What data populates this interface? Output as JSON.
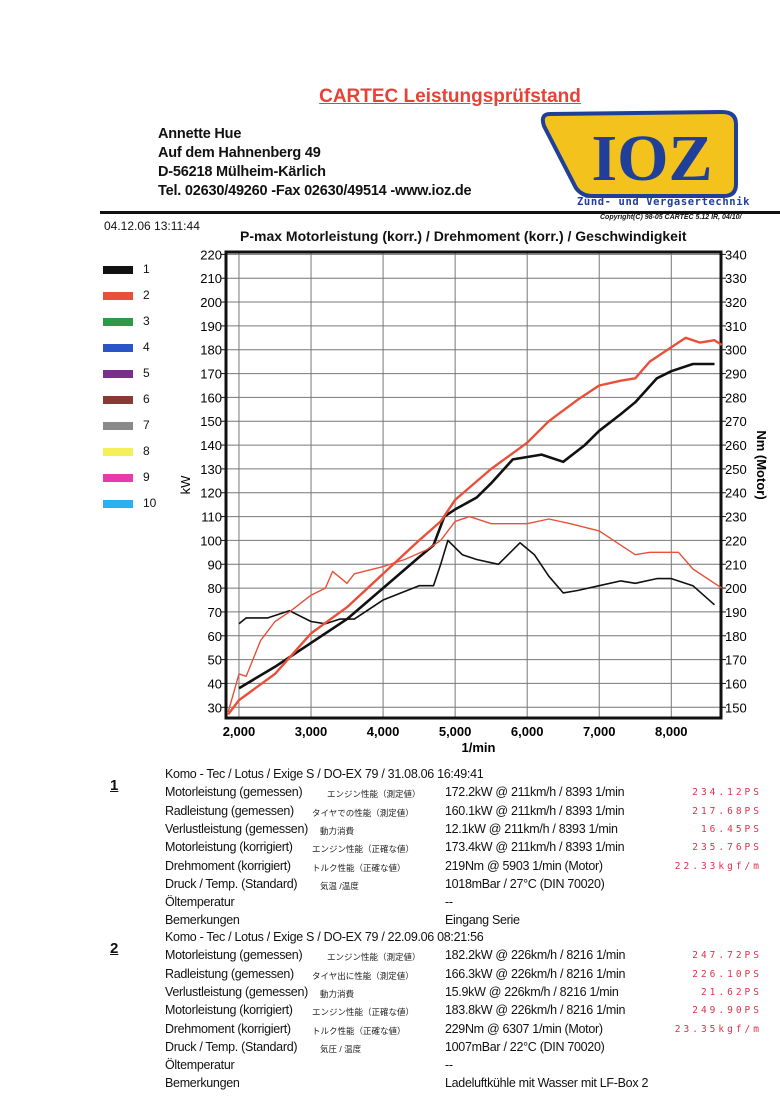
{
  "header": {
    "title": "CARTEC Leistungsprüfstand",
    "address": [
      "Annette Hue",
      "Auf dem Hahnenberg 49",
      "D-56218 Mülheim-Kärlich",
      "Tel. 02630/49260 -Fax 02630/49514 -www.ioz.de"
    ],
    "logo_text": "IOZ",
    "logo_subtitle": "Zünd- und Vergasertechnik",
    "copyright": "Copyright(C) 98-05 CARTEC 5.12 IR, 04/10/",
    "date": "04.12.06 13:11:44"
  },
  "legend": [
    {
      "label": "1",
      "color": "#111111"
    },
    {
      "label": "2",
      "color": "#e8503a"
    },
    {
      "label": "3",
      "color": "#2e9a48"
    },
    {
      "label": "4",
      "color": "#2a55c8"
    },
    {
      "label": "5",
      "color": "#7a2e8e"
    },
    {
      "label": "6",
      "color": "#8a3a34"
    },
    {
      "label": "7",
      "color": "#8a8a8a"
    },
    {
      "label": "8",
      "color": "#f5f05a"
    },
    {
      "label": "9",
      "color": "#e83aa8"
    },
    {
      "label": "10",
      "color": "#2ab0f0"
    }
  ],
  "chart_data": {
    "type": "line",
    "title": "P-max Motorleistung (korr.) / Drehmoment (korr.) / Geschwindigkeit",
    "xlabel": "1/min",
    "ylabel": "kW",
    "ylabel_right": "Nm (Motor)",
    "xlim": [
      1820,
      8690
    ],
    "ylim": [
      25.5,
      221
    ],
    "ylim_right": [
      145.5,
      341
    ],
    "xticks": [
      2000,
      3000,
      4000,
      5000,
      6000,
      7000,
      8000
    ],
    "xtick_labels": [
      "2,000",
      "3,000",
      "4,000",
      "5,000",
      "6,000",
      "7,000",
      "8,000"
    ],
    "yticks": [
      30,
      40,
      50,
      60,
      70,
      80,
      90,
      100,
      110,
      120,
      130,
      140,
      150,
      160,
      170,
      180,
      190,
      200,
      210,
      220
    ],
    "yticks_right": [
      150,
      160,
      170,
      180,
      190,
      200,
      210,
      220,
      230,
      240,
      250,
      260,
      270,
      280,
      290,
      300,
      310,
      320,
      330,
      340
    ],
    "grid": true,
    "series": [
      {
        "name": "1 Motorleistung",
        "axis": "left",
        "color": "#111111",
        "width": 2.6,
        "x": [
          2000,
          2500,
          3000,
          3500,
          4000,
          4500,
          4700,
          4850,
          5000,
          5300,
          5500,
          5800,
          6000,
          6200,
          6500,
          6800,
          7000,
          7300,
          7500,
          7800,
          8000,
          8300,
          8600
        ],
        "y": [
          38,
          47,
          57,
          67,
          80,
          93,
          98,
          110,
          113,
          118,
          124,
          134,
          135,
          136,
          133,
          140,
          146,
          153,
          158,
          168,
          171,
          174,
          174
        ]
      },
      {
        "name": "1 Drehmoment",
        "axis": "right",
        "color": "#111111",
        "width": 1.6,
        "x": [
          2000,
          2100,
          2400,
          2700,
          3000,
          3200,
          3400,
          3600,
          4000,
          4500,
          4700,
          4800,
          4900,
          5100,
          5300,
          5600,
          5900,
          6100,
          6300,
          6500,
          6700,
          7000,
          7300,
          7500,
          7800,
          8000,
          8300,
          8600
        ],
        "y": [
          185,
          187.5,
          187.5,
          190.5,
          186,
          185,
          187,
          187,
          195,
          201,
          201,
          210,
          220,
          214,
          212,
          210,
          219,
          214,
          205,
          198,
          199,
          201,
          203,
          202,
          204,
          204,
          201,
          193
        ]
      },
      {
        "name": "2 Motorleistung",
        "axis": "left",
        "color": "#e8503a",
        "width": 2.4,
        "x": [
          1850,
          2000,
          2500,
          3000,
          3500,
          4000,
          4500,
          4800,
          5000,
          5500,
          6000,
          6300,
          6700,
          7000,
          7300,
          7500,
          7700,
          8000,
          8200,
          8400,
          8600,
          8700
        ],
        "y": [
          27,
          33,
          44,
          61,
          72,
          86,
          100,
          108,
          117,
          130,
          141,
          150,
          159,
          165,
          167,
          168,
          175,
          181,
          185,
          183,
          184,
          182
        ]
      },
      {
        "name": "2 Drehmoment",
        "axis": "right",
        "color": "#e8503a",
        "width": 1.4,
        "x": [
          1850,
          2000,
          2100,
          2300,
          2500,
          2700,
          3000,
          3200,
          3300,
          3500,
          3600,
          3800,
          4000,
          4300,
          4600,
          4800,
          5000,
          5200,
          5500,
          5800,
          6000,
          6300,
          6600,
          7000,
          7300,
          7500,
          7700,
          8000,
          8100,
          8300,
          8700
        ],
        "y": [
          148,
          164,
          163,
          178,
          186,
          190,
          197,
          200,
          207,
          202,
          206,
          207.5,
          209,
          212,
          216,
          220,
          228,
          230,
          227,
          227,
          227,
          229,
          227,
          224,
          218,
          214,
          215,
          215,
          215,
          208,
          200
        ]
      }
    ]
  },
  "runs": [
    {
      "number": "1",
      "header": "Komo - Tec / Lotus / Exige S / DO-EX 79 / 31.08.06 16:49:41",
      "rows": [
        {
          "label": "Motorleistung (gemessen)",
          "jp": "エンジン性能（測定値）",
          "value": "172.2kW @ 211km/h / 8393 1/min",
          "ps": "234.12PS"
        },
        {
          "label": "Radleistung (gemessen)",
          "jp": "タイヤでの性能（測定値）",
          "value": "160.1kW @ 211km/h / 8393 1/min",
          "ps": "217.68PS"
        },
        {
          "label": "Verlustleistung (gemessen)",
          "jp": "動力消費",
          "value": "12.1kW @ 211km/h / 8393 1/min",
          "ps": "16.45PS"
        },
        {
          "label": "Motorleistung (korrigiert)",
          "jp": "エンジン性能（正確な値）",
          "value": "173.4kW @ 211km/h / 8393 1/min",
          "ps": "235.76PS"
        },
        {
          "label": "Drehmoment (korrigiert)",
          "jp": "トルク性能（正確な値）",
          "value": "219Nm @ 5903 1/min (Motor)",
          "ps": "22.33kgf/m"
        },
        {
          "label": "Druck / Temp. (Standard)",
          "jp": "気温 /温度",
          "value": "1018mBar / 27°C   (DIN 70020)",
          "ps": ""
        },
        {
          "label": "Öltemperatur",
          "jp": "",
          "value": "--",
          "ps": ""
        },
        {
          "label": "Bemerkungen",
          "jp": "",
          "value": "Eingang Serie",
          "ps": ""
        }
      ]
    },
    {
      "number": "2",
      "header": "Komo - Tec / Lotus / Exige S / DO-EX 79 / 22.09.06 08:21:56",
      "rows": [
        {
          "label": "Motorleistung (gemessen)",
          "jp": "エンジン性能（測定値）",
          "value": "182.2kW @ 226km/h / 8216 1/min",
          "ps": "247.72PS"
        },
        {
          "label": "Radleistung (gemessen)",
          "jp": "タイヤ出に性能（測定値）",
          "value": "166.3kW @ 226km/h / 8216 1/min",
          "ps": "226.10PS"
        },
        {
          "label": "Verlustleistung (gemessen)",
          "jp": "動力消費",
          "value": "15.9kW @ 226km/h / 8216 1/min",
          "ps": "21.62PS"
        },
        {
          "label": "Motorleistung (korrigiert)",
          "jp": "エンジン性能（正確な値）",
          "value": "183.8kW @ 226km/h / 8216 1/min",
          "ps": "249.90PS"
        },
        {
          "label": "Drehmoment (korrigiert)",
          "jp": "トルク性能（正確な値）",
          "value": "229Nm @ 6307 1/min (Motor)",
          "ps": "23.35kgf/m"
        },
        {
          "label": "Druck / Temp. (Standard)",
          "jp": "気圧 / 温度",
          "value": "1007mBar / 22°C   (DIN 70020)",
          "ps": ""
        },
        {
          "label": "Öltemperatur",
          "jp": "",
          "value": "--",
          "ps": ""
        },
        {
          "label": "Bemerkungen",
          "jp": "",
          "value": "Ladeluftkühle mit Wasser mit LF-Box 2",
          "ps": ""
        }
      ]
    }
  ]
}
